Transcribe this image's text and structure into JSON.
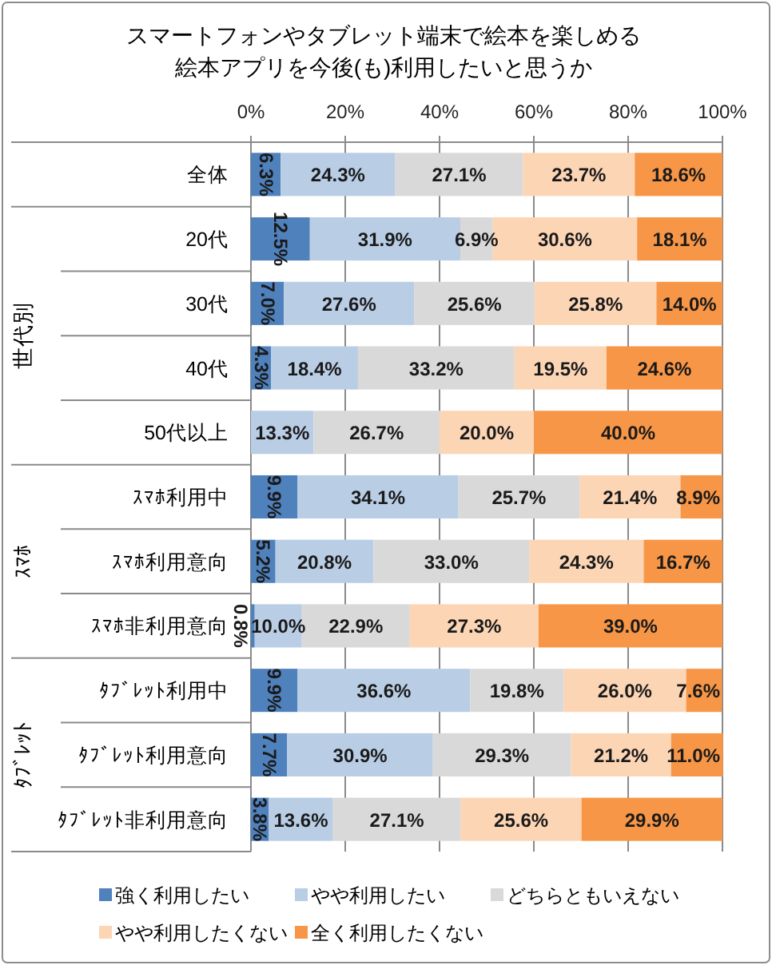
{
  "chart_data": {
    "type": "bar",
    "orientation": "horizontal",
    "stacked": true,
    "title": "スマートフォンやタブレット端末で絵本を楽しめる絵本アプリを今後(も)利用したいと思うか",
    "categories": [
      "全体",
      "20代",
      "30代",
      "40代",
      "50代以上",
      "ｽﾏﾎ利用中",
      "ｽﾏﾎ利用意向",
      "ｽﾏﾎ非利用意向",
      "ﾀﾌﾞﾚｯﾄ利用中",
      "ﾀﾌﾞﾚｯﾄ利用意向",
      "ﾀﾌﾞﾚｯﾄ非利用意向"
    ],
    "series": [
      {
        "name": "強く利用したい",
        "color": "#4f81bd",
        "values": [
          6.3,
          12.5,
          7.0,
          4.3,
          null,
          9.9,
          5.2,
          0.8,
          9.9,
          7.7,
          3.8
        ],
        "value_labels": [
          "6.3%",
          "12.5%",
          "7.0%",
          "4.3%",
          null,
          "9.9%",
          "5.2%",
          "0.8%",
          "9.9%",
          "7.7%",
          "3.8%"
        ]
      },
      {
        "name": "やや利用したい",
        "color": "#b9cde5",
        "values": [
          24.3,
          31.9,
          27.6,
          18.4,
          13.3,
          34.1,
          20.8,
          10.0,
          36.6,
          30.9,
          13.6
        ],
        "value_labels": [
          "24.3%",
          "31.9%",
          "27.6%",
          "18.4%",
          "13.3%",
          "34.1%",
          "20.8%",
          "10.0%",
          "36.6%",
          "30.9%",
          "13.6%"
        ]
      },
      {
        "name": "どちらともいえない",
        "color": "#d9d9d9",
        "values": [
          27.1,
          6.9,
          25.6,
          33.2,
          26.7,
          25.7,
          33.0,
          22.9,
          19.8,
          29.3,
          27.1
        ],
        "value_labels": [
          "27.1%",
          "6.9%",
          "25.6%",
          "33.2%",
          "26.7%",
          "25.7%",
          "33.0%",
          "22.9%",
          "19.8%",
          "29.3%",
          "27.1%"
        ]
      },
      {
        "name": "やや利用したくない",
        "color": "#fcd5b5",
        "values": [
          23.7,
          30.6,
          25.8,
          19.5,
          20.0,
          21.4,
          24.3,
          27.3,
          26.0,
          21.2,
          25.6
        ],
        "value_labels": [
          "23.7%",
          "30.6%",
          "25.8%",
          "19.5%",
          "20.0%",
          "21.4%",
          "24.3%",
          "27.3%",
          "26.0%",
          "21.2%",
          "25.6%"
        ]
      },
      {
        "name": "全く利用したくない",
        "color": "#f79646",
        "values": [
          18.6,
          18.1,
          14.0,
          24.6,
          40.0,
          8.9,
          16.7,
          39.0,
          7.6,
          11.0,
          29.9
        ],
        "value_labels": [
          "18.6%",
          "18.1%",
          "14.0%",
          "24.6%",
          "40.0%",
          "8.9%",
          "16.7%",
          "39.0%",
          "7.6%",
          "11.0%",
          "29.9%"
        ]
      }
    ],
    "xlim": [
      0,
      100
    ],
    "xticks": [
      {
        "value": 0,
        "label": "0%"
      },
      {
        "value": 20,
        "label": "20%"
      },
      {
        "value": 40,
        "label": "40%"
      },
      {
        "value": 60,
        "label": "60%"
      },
      {
        "value": 80,
        "label": "80%"
      },
      {
        "value": 100,
        "label": "100%"
      }
    ],
    "annotations": [
      "世代別",
      "ｽﾏﾎ",
      "ﾀﾌﾞﾚｯﾄ"
    ],
    "grid": "x",
    "legend": "bottom"
  }
}
